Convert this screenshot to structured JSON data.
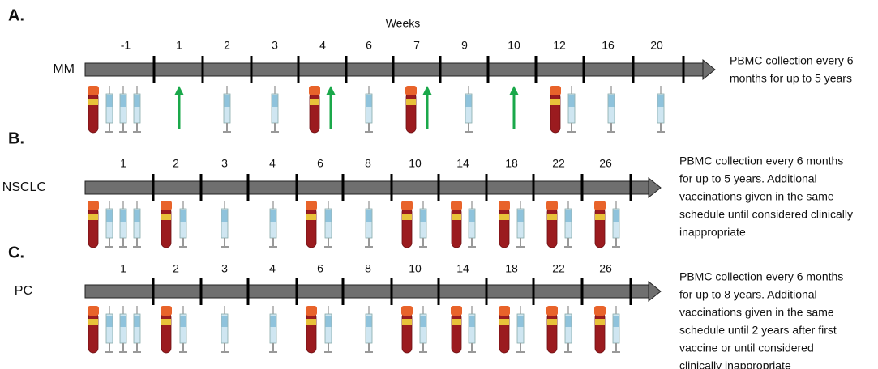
{
  "header": {
    "title": "Weeks"
  },
  "panels": [
    {
      "letter": "A.",
      "label": "MM",
      "weeks": [
        "-1",
        "1",
        "2",
        "3",
        "4",
        "6",
        "7",
        "9",
        "10",
        "12",
        "16",
        "20"
      ],
      "note": [
        "PBMC collection every 6",
        "months for up to 5 years"
      ]
    },
    {
      "letter": "B.",
      "label": "NSCLC",
      "weeks": [
        "1",
        "2",
        "3",
        "4",
        "6",
        "8",
        "10",
        "14",
        "18",
        "22",
        "26"
      ],
      "note": [
        "PBMC collection every 6 months",
        "for up to 5 years. Additional",
        "vaccinations given in the same",
        "schedule until considered clinically",
        "inappropriate"
      ]
    },
    {
      "letter": "C.",
      "label": "PC",
      "weeks": [
        "1",
        "2",
        "3",
        "4",
        "6",
        "8",
        "10",
        "14",
        "18",
        "22",
        "26"
      ],
      "note": [
        "PBMC collection every 6 months",
        "for up to 8 years. Additional",
        "vaccinations given in the same",
        "schedule until 2 years after first",
        "vaccine or until considered",
        "clinically inappropriate"
      ]
    }
  ]
}
